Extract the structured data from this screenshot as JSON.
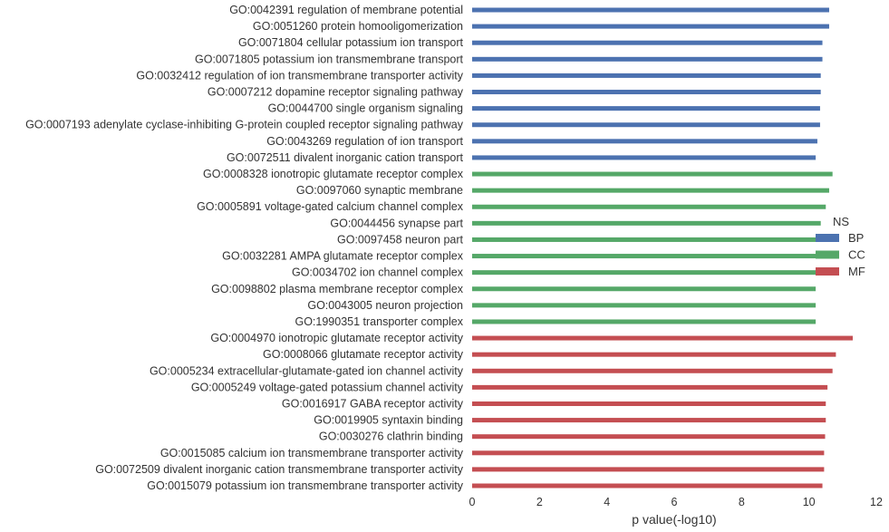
{
  "chart_data": {
    "type": "bar",
    "orientation": "horizontal",
    "xlabel": "p value(-log10)",
    "ylabel": "",
    "xlim": [
      0,
      12
    ],
    "xticks": [
      "0",
      "2",
      "4",
      "6",
      "8",
      "10",
      "12"
    ],
    "grid": false,
    "legend": {
      "title": "NS",
      "position": "right",
      "entries": [
        {
          "name": "BP",
          "color": "#4c72b0"
        },
        {
          "name": "CC",
          "color": "#55a868"
        },
        {
          "name": "MF",
          "color": "#c44e52"
        }
      ]
    },
    "categories": [
      {
        "label": "GO:0042391 regulation of membrane potential",
        "value": 10.6,
        "group": "BP"
      },
      {
        "label": "GO:0051260 protein homooligomerization",
        "value": 10.6,
        "group": "BP"
      },
      {
        "label": "GO:0071804 cellular potassium ion transport",
        "value": 10.4,
        "group": "BP"
      },
      {
        "label": "GO:0071805 potassium ion transmembrane transport",
        "value": 10.4,
        "group": "BP"
      },
      {
        "label": "GO:0032412 regulation of ion transmembrane transporter activity",
        "value": 10.35,
        "group": "BP"
      },
      {
        "label": "GO:0007212 dopamine receptor signaling pathway",
        "value": 10.35,
        "group": "BP"
      },
      {
        "label": "GO:0044700 single organism signaling",
        "value": 10.33,
        "group": "BP"
      },
      {
        "label": "GO:0007193 adenylate cyclase-inhibiting G-protein coupled receptor signaling pathway",
        "value": 10.33,
        "group": "BP"
      },
      {
        "label": "GO:0043269 regulation of ion transport",
        "value": 10.25,
        "group": "BP"
      },
      {
        "label": "GO:0072511 divalent inorganic cation transport",
        "value": 10.2,
        "group": "BP"
      },
      {
        "label": "GO:0008328 ionotropic glutamate receptor complex",
        "value": 10.7,
        "group": "CC"
      },
      {
        "label": "GO:0097060 synaptic membrane",
        "value": 10.6,
        "group": "CC"
      },
      {
        "label": "GO:0005891 voltage-gated calcium channel complex",
        "value": 10.5,
        "group": "CC"
      },
      {
        "label": "GO:0044456 synapse part",
        "value": 10.35,
        "group": "CC"
      },
      {
        "label": "GO:0097458 neuron part",
        "value": 10.3,
        "group": "CC"
      },
      {
        "label": "GO:0032281 AMPA glutamate receptor complex",
        "value": 10.25,
        "group": "CC"
      },
      {
        "label": "GO:0034702 ion channel complex",
        "value": 10.2,
        "group": "CC"
      },
      {
        "label": "GO:0098802 plasma membrane receptor complex",
        "value": 10.2,
        "group": "CC"
      },
      {
        "label": "GO:0043005 neuron projection",
        "value": 10.2,
        "group": "CC"
      },
      {
        "label": "GO:1990351 transporter complex",
        "value": 10.2,
        "group": "CC"
      },
      {
        "label": "GO:0004970 ionotropic glutamate receptor activity",
        "value": 11.3,
        "group": "MF"
      },
      {
        "label": "GO:0008066 glutamate receptor activity",
        "value": 10.8,
        "group": "MF"
      },
      {
        "label": "GO:0005234 extracellular-glutamate-gated ion channel activity",
        "value": 10.7,
        "group": "MF"
      },
      {
        "label": "GO:0005249 voltage-gated potassium channel activity",
        "value": 10.55,
        "group": "MF"
      },
      {
        "label": "GO:0016917 GABA receptor activity",
        "value": 10.5,
        "group": "MF"
      },
      {
        "label": "GO:0019905 syntaxin binding",
        "value": 10.5,
        "group": "MF"
      },
      {
        "label": "GO:0030276 clathrin binding",
        "value": 10.48,
        "group": "MF"
      },
      {
        "label": "GO:0015085 calcium ion transmembrane transporter activity",
        "value": 10.45,
        "group": "MF"
      },
      {
        "label": "GO:0072509 divalent inorganic cation transmembrane transporter activity",
        "value": 10.45,
        "group": "MF"
      },
      {
        "label": "GO:0015079 potassium ion transmembrane transporter activity",
        "value": 10.4,
        "group": "MF"
      }
    ]
  }
}
